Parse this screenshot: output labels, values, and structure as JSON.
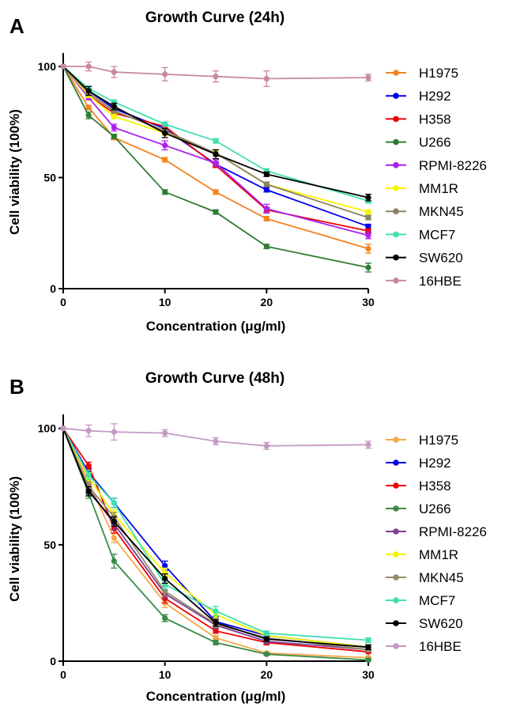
{
  "chart_data": [
    {
      "type": "line",
      "panel": "A",
      "title": "Growth Curve (24h)",
      "xlabel": "Concentration (μg/ml)",
      "ylabel": "Cell viability (100%)",
      "x": [
        0,
        2.5,
        5,
        10,
        15,
        20,
        30
      ],
      "xticks": [
        0,
        10,
        20,
        30
      ],
      "yticks": [
        0,
        50,
        100
      ],
      "xlim": [
        0,
        30
      ],
      "ylim": [
        0,
        105
      ],
      "legend": "right",
      "series": [
        {
          "name": "H1975",
          "color": "#f5821f",
          "values": [
            100,
            81.5,
            68,
            58,
            43.5,
            31.5,
            18
          ],
          "err": [
            0,
            1,
            1,
            1,
            1,
            1,
            2
          ]
        },
        {
          "name": "H292",
          "color": "#0000ee",
          "values": [
            100,
            89,
            81,
            72,
            56,
            44.5,
            28
          ],
          "err": [
            0,
            1,
            1,
            1,
            1,
            1,
            1
          ]
        },
        {
          "name": "H358",
          "color": "#ee0000",
          "values": [
            100,
            87,
            79,
            73,
            55.5,
            35.5,
            26
          ],
          "err": [
            0,
            1,
            1,
            1,
            1,
            1,
            1
          ]
        },
        {
          "name": "U266",
          "color": "#2e7d32",
          "values": [
            100,
            78,
            68.5,
            43.5,
            34.5,
            19,
            9.5
          ],
          "err": [
            0,
            1.5,
            1,
            1,
            1,
            1,
            2
          ]
        },
        {
          "name": "RPMI-8226",
          "color": "#aa22ee",
          "values": [
            100,
            86,
            72.5,
            64.5,
            56.5,
            36,
            24
          ],
          "err": [
            0,
            1,
            1.5,
            2,
            1.5,
            2,
            1.5
          ]
        },
        {
          "name": "MM1R",
          "color": "#f5f500",
          "values": [
            100,
            87,
            77.5,
            70,
            61,
            47,
            34.5
          ],
          "err": [
            0,
            1,
            1,
            1,
            1,
            1,
            1
          ]
        },
        {
          "name": "MKN45",
          "color": "#8b8360",
          "values": [
            100,
            88,
            80,
            71,
            61,
            47,
            32
          ],
          "err": [
            0,
            1,
            1,
            1,
            1.5,
            1,
            1
          ]
        },
        {
          "name": "MCF7",
          "color": "#40e0b0",
          "values": [
            100,
            90,
            84,
            74,
            66.5,
            53,
            39.5
          ],
          "err": [
            0,
            1,
            1,
            1,
            1,
            1,
            1
          ]
        },
        {
          "name": "SW620",
          "color": "#000000",
          "values": [
            100,
            89,
            82,
            70,
            60.5,
            51.5,
            41
          ],
          "err": [
            0,
            2,
            1.5,
            2,
            2,
            1,
            1.5
          ]
        },
        {
          "name": "16HBE",
          "color": "#c9899e",
          "values": [
            100,
            100,
            97.5,
            96.5,
            95.5,
            94.5,
            95
          ],
          "err": [
            0,
            2,
            2.5,
            3,
            2.5,
            3.5,
            1.5
          ]
        }
      ]
    },
    {
      "type": "line",
      "panel": "B",
      "title": "Growth Curve (48h)",
      "xlabel": "Concentration (μg/ml)",
      "ylabel": "Cell viability (100%)",
      "x": [
        0,
        2.5,
        5,
        10,
        15,
        20,
        30
      ],
      "xticks": [
        0,
        10,
        20,
        30
      ],
      "yticks": [
        0,
        50,
        100
      ],
      "xlim": [
        0,
        30
      ],
      "ylim": [
        0,
        105
      ],
      "legend": "right",
      "series": [
        {
          "name": "H1975",
          "color": "#f5a84a",
          "values": [
            100,
            77,
            53,
            25,
            10,
            3.5,
            1.5
          ],
          "err": [
            0,
            2,
            2,
            2,
            1,
            0.5,
            0.5
          ]
        },
        {
          "name": "H292",
          "color": "#0000ee",
          "values": [
            100,
            81,
            68,
            41,
            17,
            11,
            6
          ],
          "err": [
            0,
            2,
            2,
            2,
            2,
            1,
            1
          ]
        },
        {
          "name": "H358",
          "color": "#ee0000",
          "values": [
            100,
            84,
            57,
            27,
            13,
            8,
            4
          ],
          "err": [
            0,
            1.5,
            2,
            2,
            1,
            1,
            0.5
          ]
        },
        {
          "name": "U266",
          "color": "#3a8a48",
          "values": [
            100,
            72,
            43,
            18.5,
            8,
            3,
            0.5
          ],
          "err": [
            0,
            2,
            3,
            1.5,
            1,
            0.5,
            0.5
          ]
        },
        {
          "name": "RPMI-8226",
          "color": "#7b3f98",
          "values": [
            100,
            74,
            59,
            29,
            15.5,
            8.5,
            5
          ],
          "err": [
            0,
            2,
            2.5,
            2,
            1.5,
            1,
            1
          ]
        },
        {
          "name": "MM1R",
          "color": "#f5f500",
          "values": [
            100,
            79,
            63,
            38,
            20,
            11,
            6
          ],
          "err": [
            0,
            2,
            2,
            2,
            1.5,
            1,
            1
          ]
        },
        {
          "name": "MKN45",
          "color": "#968a6a",
          "values": [
            100,
            75,
            62,
            30,
            16,
            10,
            5
          ],
          "err": [
            0,
            2,
            2,
            2,
            1.5,
            1,
            1
          ]
        },
        {
          "name": "MCF7",
          "color": "#40e0b0",
          "values": [
            100,
            80,
            68,
            33,
            21.5,
            12,
            9
          ],
          "err": [
            0,
            2,
            2,
            2,
            2,
            1,
            1
          ]
        },
        {
          "name": "SW620",
          "color": "#000000",
          "values": [
            100,
            73,
            60,
            35.5,
            16.5,
            9.5,
            6
          ],
          "err": [
            0,
            2,
            2,
            2,
            1.5,
            1,
            1
          ]
        },
        {
          "name": "16HBE",
          "color": "#c49ac4",
          "values": [
            100,
            99,
            98.5,
            98,
            94.5,
            92.5,
            93
          ],
          "err": [
            0,
            2.5,
            3.5,
            1.5,
            1.5,
            1.5,
            1.5
          ]
        }
      ]
    }
  ]
}
